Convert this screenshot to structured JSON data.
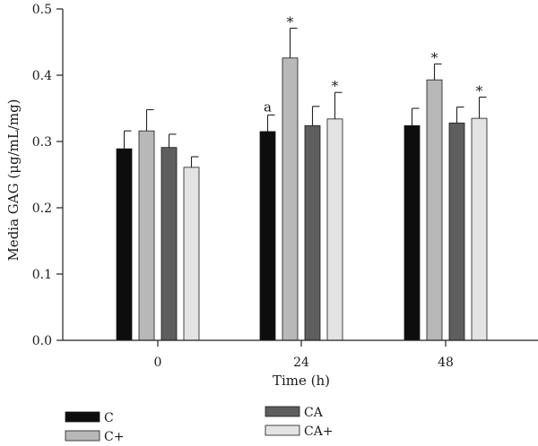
{
  "chart_data": {
    "type": "bar",
    "title": "",
    "xlabel": "Time (h)",
    "ylabel": "Media GAG (μg/mL/mg)",
    "ylim": [
      0,
      0.5
    ],
    "yticks": [
      "0.0",
      "0.1",
      "0.2",
      "0.3",
      "0.4",
      "0.5"
    ],
    "categories": [
      "0",
      "24",
      "48"
    ],
    "series": [
      {
        "name": "C",
        "color": "#0d0d0d",
        "values": [
          0.289,
          0.315,
          0.324
        ],
        "errors": [
          0.027,
          0.025,
          0.026
        ],
        "annotations": [
          "",
          "a",
          ""
        ]
      },
      {
        "name": "C+",
        "color": "#b8b8b8",
        "values": [
          0.316,
          0.426,
          0.393
        ],
        "errors": [
          0.032,
          0.045,
          0.024
        ],
        "annotations": [
          "",
          "*",
          "*"
        ]
      },
      {
        "name": "CA",
        "color": "#5e5e5e",
        "values": [
          0.291,
          0.324,
          0.328
        ],
        "errors": [
          0.02,
          0.029,
          0.024
        ],
        "annotations": [
          "",
          "",
          ""
        ]
      },
      {
        "name": "CA+",
        "color": "#e3e3e3",
        "values": [
          0.261,
          0.334,
          0.335
        ],
        "errors": [
          0.016,
          0.04,
          0.032
        ],
        "annotations": [
          "",
          "*",
          "*"
        ]
      }
    ],
    "grid": false,
    "legend_position": "bottom-left"
  }
}
